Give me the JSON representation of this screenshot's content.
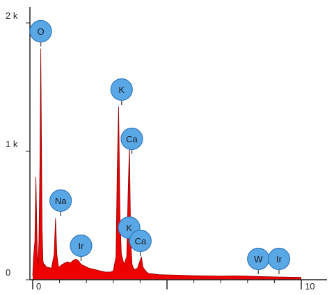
{
  "chart_data": {
    "type": "line",
    "title": "",
    "xlabel": "",
    "ylabel": "",
    "xlim": [
      -0.2,
      10.4
    ],
    "ylim": [
      0,
      2000
    ],
    "x_ticks": [
      0,
      10
    ],
    "x_tick_labels": [
      "0",
      "10"
    ],
    "y_ticks": [
      0,
      1000,
      2000
    ],
    "y_tick_labels": [
      "0",
      "1 k",
      "2 k"
    ],
    "colors": {
      "spectrum": "#ee0000",
      "axis": "#222222",
      "badge": "#5aa7e6",
      "badge_border": "#2f79bf",
      "marker": "#5a5a5a"
    },
    "series": [
      {
        "x": [
          0.0,
          0.03,
          0.08,
          0.12,
          0.17,
          0.2,
          0.23,
          0.27,
          0.3,
          0.35,
          0.38,
          0.42,
          0.45,
          0.5,
          0.6,
          0.7,
          0.8,
          0.85,
          0.9,
          0.95,
          1.0,
          1.05,
          1.1,
          1.2,
          1.3,
          1.4,
          1.5,
          1.6,
          1.7,
          1.8,
          1.9,
          2.0,
          2.1,
          2.2,
          2.3,
          2.4,
          2.5,
          2.6,
          2.7,
          2.8,
          2.9,
          3.0,
          3.1,
          3.15,
          3.2,
          3.25,
          3.3,
          3.4,
          3.5,
          3.55,
          3.6,
          3.65,
          3.7,
          3.75,
          3.8,
          3.9,
          4.0,
          4.05,
          4.1,
          4.2,
          4.3,
          4.5,
          4.7,
          5.0,
          5.5,
          6.0,
          6.5,
          7.0,
          7.5,
          8.0,
          8.5,
          9.0,
          9.5,
          10.0
        ],
        "y": [
          30,
          180,
          300,
          800,
          200,
          120,
          300,
          900,
          1800,
          400,
          150,
          110,
          120,
          100,
          95,
          90,
          200,
          480,
          200,
          110,
          100,
          110,
          120,
          130,
          140,
          130,
          150,
          160,
          150,
          120,
          110,
          100,
          90,
          85,
          80,
          75,
          70,
          65,
          60,
          60,
          60,
          70,
          180,
          900,
          1350,
          500,
          200,
          120,
          180,
          650,
          1050,
          300,
          120,
          90,
          80,
          90,
          150,
          180,
          100,
          70,
          50,
          45,
          40,
          38,
          35,
          32,
          30,
          28,
          30,
          28,
          25,
          22,
          20,
          18
        ]
      }
    ],
    "annotations": [
      {
        "label": "O",
        "x": 0.3
      },
      {
        "label": "Na",
        "x": 1.04
      },
      {
        "label": "Ir",
        "x": 1.8
      },
      {
        "label": "K",
        "x": 3.31
      },
      {
        "label": "Ca",
        "x": 3.69
      },
      {
        "label": "K",
        "x": 3.59
      },
      {
        "label": "Ca",
        "x": 4.01
      },
      {
        "label": "W",
        "x": 8.4
      },
      {
        "label": "Ir",
        "x": 9.17
      }
    ]
  }
}
